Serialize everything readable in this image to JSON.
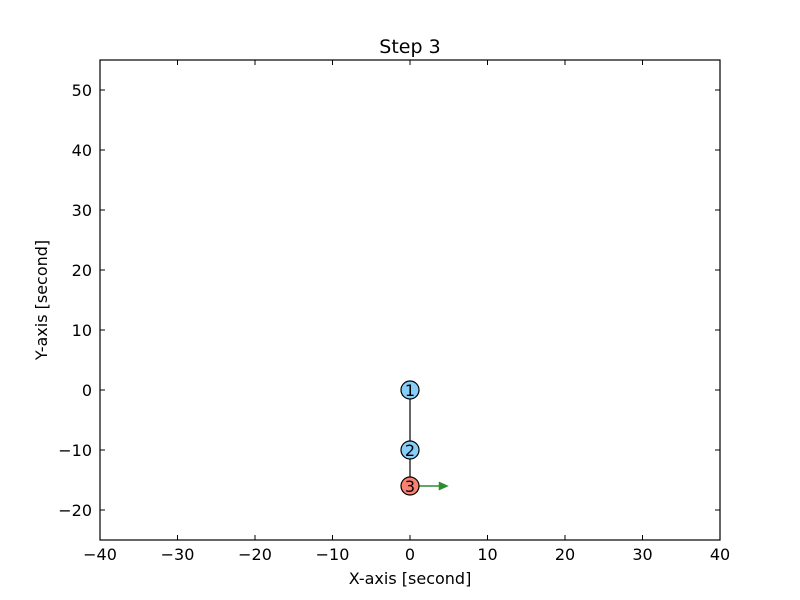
{
  "chart_data": {
    "type": "scatter",
    "title": "Step 3",
    "xlabel": "X-axis [second]",
    "ylabel": "Y-axis [second]",
    "xlim": [
      -40,
      40
    ],
    "ylim": [
      -25,
      55
    ],
    "xticks": [
      -40,
      -30,
      -20,
      -10,
      0,
      10,
      20,
      30,
      40
    ],
    "yticks": [
      -20,
      -10,
      0,
      10,
      20,
      30,
      40,
      50
    ],
    "grid": false,
    "nodes": [
      {
        "label": "1",
        "x": 0,
        "y": 0,
        "color": "#87CEFA"
      },
      {
        "label": "2",
        "x": 0,
        "y": -10,
        "color": "#87CEFA"
      },
      {
        "label": "3",
        "x": 0,
        "y": -16,
        "color": "#FA8072"
      }
    ],
    "edges": [
      [
        0,
        1
      ],
      [
        1,
        2
      ]
    ],
    "arrow": {
      "from": [
        0,
        -16
      ],
      "to": [
        5,
        -16
      ],
      "color": "#2E8B2E"
    }
  }
}
